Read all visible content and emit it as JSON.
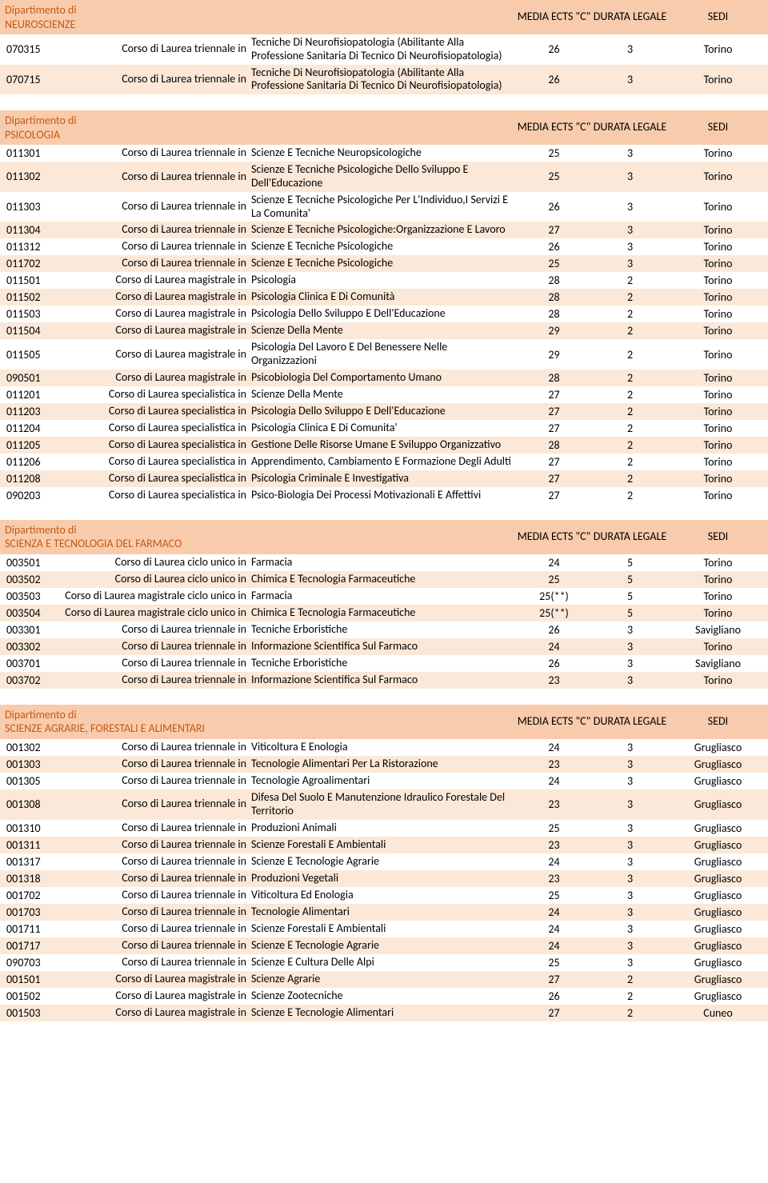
{
  "labels": {
    "dipartimento_di": "Dipartimento di",
    "media": "MEDIA ECTS \"C\"",
    "durata": "DURATA LEGALE",
    "sedi": "SEDI"
  },
  "sections": [
    {
      "dept": "NEUROSCIENZE",
      "rows": [
        {
          "code": "070315",
          "level": "Corso di Laurea triennale in",
          "title": "Tecniche Di Neurofisiopatologia (Abilitante Alla Professione Sanitaria Di Tecnico Di Neurofisiopatologia)",
          "media": "26",
          "durata": "3",
          "sede": "Torino"
        },
        {
          "code": "070715",
          "level": "Corso di Laurea triennale in",
          "title": "Tecniche Di Neurofisiopatologia (Abilitante Alla Professione Sanitaria Di Tecnico Di Neurofisiopatologia)",
          "media": "26",
          "durata": "3",
          "sede": "Torino"
        }
      ]
    },
    {
      "dept": "PSICOLOGIA",
      "rows": [
        {
          "code": "011301",
          "level": "Corso di Laurea triennale in",
          "title": "Scienze E Tecniche Neuropsicologiche",
          "media": "25",
          "durata": "3",
          "sede": "Torino"
        },
        {
          "code": "011302",
          "level": "Corso di Laurea triennale in",
          "title": "Scienze E Tecniche Psicologiche Dello Sviluppo E Dell'Educazione",
          "media": "25",
          "durata": "3",
          "sede": "Torino"
        },
        {
          "code": "011303",
          "level": "Corso di Laurea triennale in",
          "title": "Scienze E Tecniche Psicologiche Per L'Individuo,I Servizi E La Comunita'",
          "media": "26",
          "durata": "3",
          "sede": "Torino"
        },
        {
          "code": "011304",
          "level": "Corso di Laurea triennale in",
          "title": "Scienze E Tecniche Psicologiche:Organizzazione E Lavoro",
          "media": "27",
          "durata": "3",
          "sede": "Torino"
        },
        {
          "code": "011312",
          "level": "Corso di Laurea triennale in",
          "title": "Scienze E Tecniche Psicologiche",
          "media": "26",
          "durata": "3",
          "sede": "Torino"
        },
        {
          "code": "011702",
          "level": "Corso di Laurea triennale in",
          "title": "Scienze E Tecniche Psicologiche",
          "media": "25",
          "durata": "3",
          "sede": "Torino"
        },
        {
          "code": "011501",
          "level": "Corso di Laurea magistrale in",
          "title": "Psicologia",
          "media": "28",
          "durata": "2",
          "sede": "Torino"
        },
        {
          "code": "011502",
          "level": "Corso di Laurea magistrale in",
          "title": "Psicologia Clinica E Di Comunità",
          "media": "28",
          "durata": "2",
          "sede": "Torino"
        },
        {
          "code": "011503",
          "level": "Corso di Laurea magistrale in",
          "title": "Psicologia Dello Sviluppo E Dell'Educazione",
          "media": "28",
          "durata": "2",
          "sede": "Torino"
        },
        {
          "code": "011504",
          "level": "Corso di Laurea magistrale in",
          "title": "Scienze Della Mente",
          "media": "29",
          "durata": "2",
          "sede": "Torino"
        },
        {
          "code": "011505",
          "level": "Corso di Laurea magistrale in",
          "title": "Psicologia Del Lavoro E Del Benessere Nelle Organizzazioni",
          "media": "29",
          "durata": "2",
          "sede": "Torino"
        },
        {
          "code": "090501",
          "level": "Corso di Laurea magistrale in",
          "title": "Psicobiologia Del Comportamento Umano",
          "media": "28",
          "durata": "2",
          "sede": "Torino"
        },
        {
          "code": "011201",
          "level": "Corso di Laurea specialistica in",
          "title": "Scienze Della Mente",
          "media": "27",
          "durata": "2",
          "sede": "Torino"
        },
        {
          "code": "011203",
          "level": "Corso di Laurea specialistica in",
          "title": "Psicologia Dello Sviluppo E Dell'Educazione",
          "media": "27",
          "durata": "2",
          "sede": "Torino"
        },
        {
          "code": "011204",
          "level": "Corso di Laurea specialistica in",
          "title": "Psicologia Clinica E Di Comunita'",
          "media": "27",
          "durata": "2",
          "sede": "Torino"
        },
        {
          "code": "011205",
          "level": "Corso di Laurea specialistica in",
          "title": "Gestione Delle Risorse Umane E Sviluppo Organizzativo",
          "media": "28",
          "durata": "2",
          "sede": "Torino"
        },
        {
          "code": "011206",
          "level": "Corso di Laurea specialistica in",
          "title": "Apprendimento, Cambiamento E Formazione Degli Adulti",
          "media": "27",
          "durata": "2",
          "sede": "Torino"
        },
        {
          "code": "011208",
          "level": "Corso di Laurea specialistica in",
          "title": "Psicologia Criminale E Investigativa",
          "media": "27",
          "durata": "2",
          "sede": "Torino"
        },
        {
          "code": "090203",
          "level": "Corso di Laurea specialistica in",
          "title": "Psico-Biologia Dei Processi Motivazionali E Affettivi",
          "media": "27",
          "durata": "2",
          "sede": "Torino"
        }
      ]
    },
    {
      "dept": "SCIENZA E TECNOLOGIA DEL FARMACO",
      "rows": [
        {
          "code": "003501",
          "level": "Corso di Laurea ciclo unico in",
          "title": "Farmacia",
          "media": "24",
          "durata": "5",
          "sede": "Torino"
        },
        {
          "code": "003502",
          "level": "Corso di Laurea ciclo unico in",
          "title": "Chimica E Tecnologia Farmaceutiche",
          "media": "25",
          "durata": "5",
          "sede": "Torino"
        },
        {
          "code": "003503",
          "level": "Corso di Laurea magistrale ciclo unico in",
          "title": "Farmacia",
          "media": "25(**)",
          "durata": "5",
          "sede": "Torino"
        },
        {
          "code": "003504",
          "level": "Corso di Laurea magistrale ciclo unico in",
          "title": "Chimica E Tecnologia Farmaceutiche",
          "media": "25(**)",
          "durata": "5",
          "sede": "Torino"
        },
        {
          "code": "003301",
          "level": "Corso di Laurea triennale in",
          "title": "Tecniche Erboristiche",
          "media": "26",
          "durata": "3",
          "sede": "Savigliano"
        },
        {
          "code": "003302",
          "level": "Corso di Laurea triennale in",
          "title": "Informazione Scientifica Sul Farmaco",
          "media": "24",
          "durata": "3",
          "sede": "Torino"
        },
        {
          "code": "003701",
          "level": "Corso di Laurea triennale in",
          "title": "Tecniche Erboristiche",
          "media": "26",
          "durata": "3",
          "sede": "Savigliano"
        },
        {
          "code": "003702",
          "level": "Corso di Laurea triennale in",
          "title": "Informazione Scientifica Sul Farmaco",
          "media": "23",
          "durata": "3",
          "sede": "Torino"
        }
      ]
    },
    {
      "dept": "SCIENZE AGRARIE, FORESTALI E ALIMENTARI",
      "rows": [
        {
          "code": "001302",
          "level": "Corso di Laurea triennale in",
          "title": "Viticoltura E Enologia",
          "media": "24",
          "durata": "3",
          "sede": "Grugliasco"
        },
        {
          "code": "001303",
          "level": "Corso di Laurea triennale in",
          "title": "Tecnologie Alimentari Per La Ristorazione",
          "media": "23",
          "durata": "3",
          "sede": "Grugliasco"
        },
        {
          "code": "001305",
          "level": "Corso di Laurea triennale in",
          "title": "Tecnologie Agroalimentari",
          "media": "24",
          "durata": "3",
          "sede": "Grugliasco"
        },
        {
          "code": "001308",
          "level": "Corso di Laurea triennale in",
          "title": "Difesa Del Suolo E Manutenzione Idraulico Forestale Del Territorio",
          "media": "23",
          "durata": "3",
          "sede": "Grugliasco"
        },
        {
          "code": "001310",
          "level": "Corso di Laurea triennale in",
          "title": "Produzioni Animali",
          "media": "25",
          "durata": "3",
          "sede": "Grugliasco"
        },
        {
          "code": "001311",
          "level": "Corso di Laurea triennale in",
          "title": "Scienze Forestali E Ambientali",
          "media": "23",
          "durata": "3",
          "sede": "Grugliasco"
        },
        {
          "code": "001317",
          "level": "Corso di Laurea triennale in",
          "title": "Scienze E Tecnologie Agrarie",
          "media": "24",
          "durata": "3",
          "sede": "Grugliasco"
        },
        {
          "code": "001318",
          "level": "Corso di Laurea triennale in",
          "title": "Produzioni Vegetali",
          "media": "23",
          "durata": "3",
          "sede": "Grugliasco"
        },
        {
          "code": "001702",
          "level": "Corso di Laurea triennale in",
          "title": "Viticoltura Ed Enologia",
          "media": "25",
          "durata": "3",
          "sede": "Grugliasco"
        },
        {
          "code": "001703",
          "level": "Corso di Laurea triennale in",
          "title": "Tecnologie Alimentari",
          "media": "24",
          "durata": "3",
          "sede": "Grugliasco"
        },
        {
          "code": "001711",
          "level": "Corso di Laurea triennale in",
          "title": "Scienze Forestali E Ambientali",
          "media": "24",
          "durata": "3",
          "sede": "Grugliasco"
        },
        {
          "code": "001717",
          "level": "Corso di Laurea triennale in",
          "title": "Scienze E Tecnologie Agrarie",
          "media": "24",
          "durata": "3",
          "sede": "Grugliasco"
        },
        {
          "code": "090703",
          "level": "Corso di Laurea triennale in",
          "title": "Scienze E Cultura Delle Alpi",
          "media": "25",
          "durata": "3",
          "sede": "Grugliasco"
        },
        {
          "code": "001501",
          "level": "Corso di Laurea magistrale in",
          "title": "Scienze Agrarie",
          "media": "27",
          "durata": "2",
          "sede": "Grugliasco"
        },
        {
          "code": "001502",
          "level": "Corso di Laurea magistrale in",
          "title": "Scienze Zootecniche",
          "media": "26",
          "durata": "2",
          "sede": "Grugliasco"
        },
        {
          "code": "001503",
          "level": "Corso di Laurea magistrale in",
          "title": "Scienze E Tecnologie Alimentari",
          "media": "27",
          "durata": "2",
          "sede": "Cuneo"
        }
      ]
    }
  ]
}
